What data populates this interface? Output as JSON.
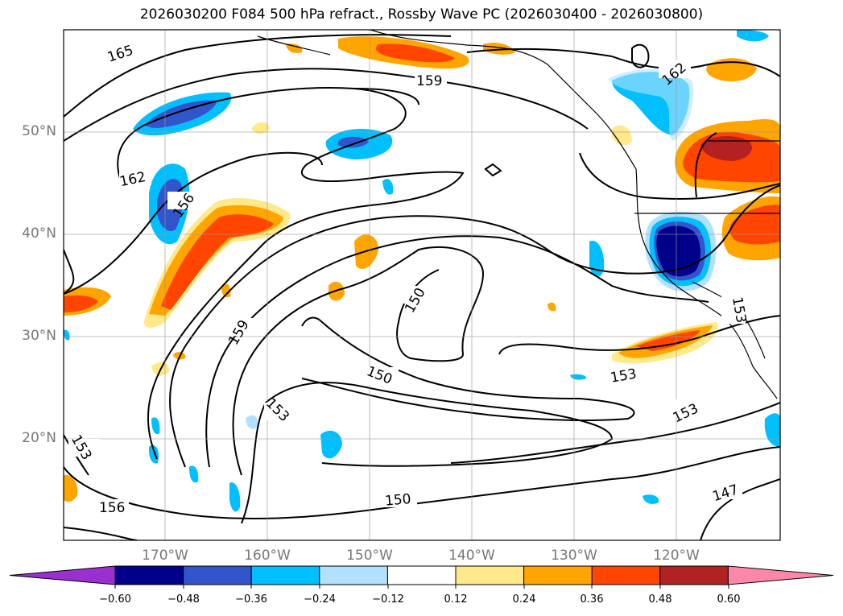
{
  "title": "2026030200 F084 500 hPa refract., Rossby Wave PC (2026030400 - 2026030800)",
  "lat_labels": [
    "50°N",
    "40°N",
    "30°N",
    "20°N"
  ],
  "lon_labels": [
    "170°W",
    "160°W",
    "150°W",
    "140°W",
    "130°W",
    "120°W"
  ],
  "contour_labels": [
    "165",
    "159",
    "162",
    "162",
    "156",
    "159",
    "150",
    "150",
    "153",
    "153",
    "153",
    "153",
    "156",
    "150",
    "147",
    "153"
  ],
  "colorbar": {
    "ticks": [
      "−0.60",
      "−0.48",
      "−0.36",
      "−0.24",
      "−0.12",
      "0.12",
      "0.24",
      "0.36",
      "0.48",
      "0.60"
    ],
    "colors": [
      "#9b30d0",
      "#00008b",
      "#3355cc",
      "#00bfff",
      "#b0e2ff",
      "#ffffff",
      "#ffe98a",
      "#ffa500",
      "#ff4500",
      "#b22222",
      "#ff88aa"
    ]
  }
}
